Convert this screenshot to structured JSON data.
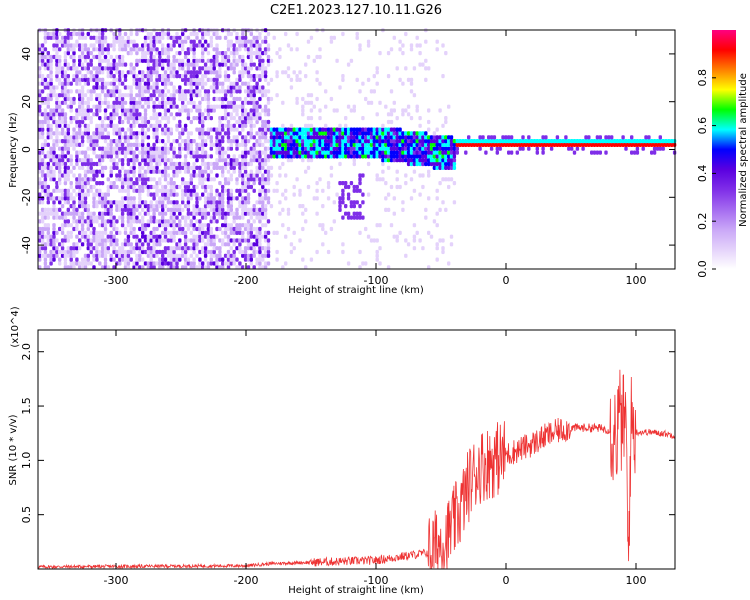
{
  "title": "C2E1.2023.127.10.11.G26",
  "colors": {
    "spectrogram_ramp": [
      "#ffffff",
      "#e4d2fb",
      "#c9a6f7",
      "#a46af0",
      "#7f2ee8",
      "#5a00e0",
      "#0000ff",
      "#00ffff",
      "#00ff00",
      "#ffff00",
      "#ff8000",
      "#ff0000",
      "#ff0080"
    ],
    "snr_line": "#ee3333"
  },
  "chart_data": [
    {
      "type": "heatmap",
      "name": "spectrogram",
      "xlabel": "Height of straight line (km)",
      "ylabel": "Frequency (Hz)",
      "xlim": [
        -360,
        130
      ],
      "ylim": [
        -50,
        50
      ],
      "x_ticks": [
        -300,
        -200,
        -100,
        0,
        100
      ],
      "y_ticks": [
        -40,
        -20,
        0,
        20,
        40
      ],
      "colorbar": {
        "label": "Normalized spectral amplitude",
        "range": [
          0.0,
          1.0
        ],
        "ticks": [
          "0.0",
          "0.2",
          "0.4",
          "0.6",
          "0.8"
        ],
        "tick_values": [
          0.0,
          0.2,
          0.4,
          0.6,
          0.8
        ]
      },
      "regions": [
        {
          "x_range": [
            -360,
            -182
          ],
          "freq_range": [
            -50,
            50
          ],
          "level": "low (0.1-0.3) broadband noise"
        },
        {
          "x_range": [
            -182,
            -40
          ],
          "freq_range": [
            -8,
            10
          ],
          "level": "0.3-0.6 signal band"
        },
        {
          "x_range": [
            -40,
            130
          ],
          "freq_range": [
            1,
            3
          ],
          "level": "0.8-1.0 narrow carrier line"
        }
      ]
    },
    {
      "type": "line",
      "name": "snr",
      "xlabel": "Height of straight line (km)",
      "ylabel": "SNR (10 * v/v)",
      "y_multiplier": "(x10^4)",
      "xlim": [
        -360,
        130
      ],
      "ylim": [
        0,
        2.2
      ],
      "x_ticks": [
        -300,
        -200,
        -100,
        0,
        100
      ],
      "y_ticks": [
        0.5,
        1.0,
        1.5,
        2.0
      ],
      "series": [
        {
          "x": [
            -360,
            -200,
            -180,
            -100,
            -60,
            -45,
            -35,
            -28,
            -20,
            -10,
            0,
            10,
            20,
            30,
            40,
            50,
            60,
            70,
            80,
            85,
            88,
            90,
            92,
            94,
            96,
            98,
            100,
            110,
            120,
            130
          ],
          "y": [
            0.02,
            0.03,
            0.05,
            0.08,
            0.15,
            0.3,
            0.55,
            0.8,
            0.95,
            1.0,
            1.05,
            1.1,
            1.15,
            1.22,
            1.27,
            1.3,
            1.3,
            1.3,
            1.28,
            1.25,
            1.4,
            1.3,
            1.45,
            0.05,
            1.3,
            1.35,
            1.26,
            1.26,
            1.25,
            1.23
          ]
        }
      ]
    }
  ]
}
